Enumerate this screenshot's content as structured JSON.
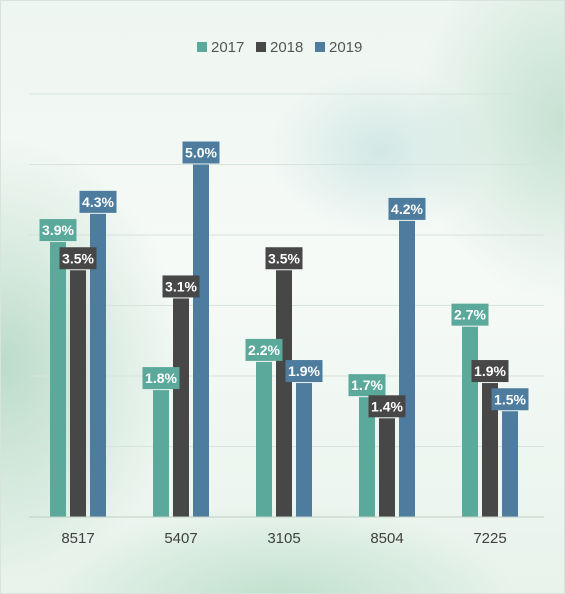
{
  "chart_data": {
    "type": "bar",
    "title": "",
    "xlabel": "",
    "ylabel": "",
    "categories": [
      "8517",
      "5407",
      "3105",
      "8504",
      "7225"
    ],
    "series": [
      {
        "name": "2017",
        "values": [
          3.9,
          1.8,
          2.2,
          1.7,
          2.7
        ],
        "labels": [
          "3.9%",
          "1.8%",
          "2.2%",
          "1.7%",
          "2.7%"
        ],
        "color": "#5ba99b"
      },
      {
        "name": "2018",
        "values": [
          3.5,
          3.1,
          3.5,
          1.4,
          1.9
        ],
        "labels": [
          "3.5%",
          "3.1%",
          "3.5%",
          "1.4%",
          "1.9%"
        ],
        "color": "#474747"
      },
      {
        "name": "2019",
        "values": [
          4.3,
          5.0,
          1.9,
          4.2,
          1.5
        ],
        "labels": [
          "4.3%",
          "5.0%",
          "1.9%",
          "4.2%",
          "1.5%"
        ],
        "color": "#4d7c9e"
      }
    ],
    "ylim": [
      0,
      6
    ],
    "grid": true,
    "legend": "top-center",
    "y_axis_labels_shown": false
  }
}
